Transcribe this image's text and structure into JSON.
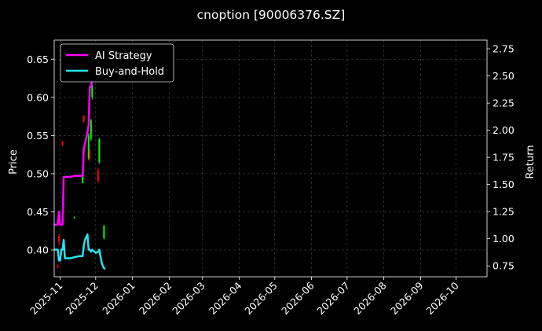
{
  "chart_data": {
    "type": "line",
    "title": "cnoption [90006376.SZ]",
    "ylabel": "Price",
    "y2label": "Return",
    "xlim": [
      "2025-10-27",
      "2026-10-27"
    ],
    "ylim": [
      0.365,
      0.675
    ],
    "y2lim": [
      0.65,
      2.83
    ],
    "x_ticks": [
      "2025-11",
      "2025-12",
      "2026-01",
      "2026-02",
      "2026-03",
      "2026-04",
      "2026-05",
      "2026-06",
      "2026-07",
      "2026-08",
      "2026-09",
      "2026-10"
    ],
    "y_ticks": [
      "0.40",
      "0.45",
      "0.50",
      "0.55",
      "0.60",
      "0.65"
    ],
    "y2_ticks": [
      "0.75",
      "1.00",
      "1.25",
      "1.50",
      "1.75",
      "2.00",
      "2.25",
      "2.50",
      "2.75"
    ],
    "grid": true,
    "legend_position": "top-left",
    "colors": {
      "background": "#000000",
      "up": "#00ff00",
      "down": "#ff0000",
      "grid": "#555555"
    },
    "candles": [
      {
        "date": "2025-10-30",
        "open": 0.38,
        "close": 0.377,
        "high": 0.381,
        "low": 0.376
      },
      {
        "date": "2025-10-31",
        "open": 0.418,
        "close": 0.41,
        "high": 0.421,
        "low": 0.406
      },
      {
        "date": "2025-11-03",
        "open": 0.542,
        "close": 0.538,
        "high": 0.543,
        "low": 0.536
      },
      {
        "date": "2025-11-13",
        "open": 0.442,
        "close": 0.443,
        "high": 0.444,
        "low": 0.441
      },
      {
        "date": "2025-11-20",
        "open": 0.488,
        "close": 0.5,
        "high": 0.502,
        "low": 0.487
      },
      {
        "date": "2025-11-21",
        "open": 0.576,
        "close": 0.568,
        "high": 0.577,
        "low": 0.566
      },
      {
        "date": "2025-11-25",
        "open": 0.52,
        "close": 0.55,
        "high": 0.553,
        "low": 0.518
      },
      {
        "date": "2025-11-26",
        "open": 0.53,
        "close": 0.52,
        "high": 0.532,
        "low": 0.516
      },
      {
        "date": "2025-11-27",
        "open": 0.545,
        "close": 0.57,
        "high": 0.572,
        "low": 0.543
      },
      {
        "date": "2025-11-28",
        "open": 0.6,
        "close": 0.615,
        "high": 0.618,
        "low": 0.597
      },
      {
        "date": "2025-12-03",
        "open": 0.505,
        "close": 0.49,
        "high": 0.507,
        "low": 0.488
      },
      {
        "date": "2025-12-04",
        "open": 0.515,
        "close": 0.545,
        "high": 0.547,
        "low": 0.513
      },
      {
        "date": "2025-12-08",
        "open": 0.415,
        "close": 0.432,
        "high": 0.433,
        "low": 0.414
      }
    ],
    "series": [
      {
        "name": "AI Strategy",
        "color": "#ff00ff",
        "axis": "right",
        "x": [
          "2025-10-27",
          "2025-10-30",
          "2025-10-31",
          "2025-11-01",
          "2025-11-03",
          "2025-11-04",
          "2025-11-10",
          "2025-11-13",
          "2025-11-17",
          "2025-11-20",
          "2025-11-21",
          "2025-11-24",
          "2025-11-25",
          "2025-11-26",
          "2025-11-27",
          "2025-11-28",
          "2025-11-30"
        ],
        "y": [
          1.13,
          1.13,
          1.25,
          1.13,
          1.13,
          1.57,
          1.57,
          1.58,
          1.58,
          1.58,
          1.83,
          1.98,
          2.05,
          2.4,
          2.4,
          2.48,
          2.55
        ]
      },
      {
        "name": "Buy-and-Hold",
        "color": "#22e5f2",
        "axis": "right",
        "x": [
          "2025-10-27",
          "2025-10-29",
          "2025-10-30",
          "2025-10-31",
          "2025-11-01",
          "2025-11-02",
          "2025-11-03",
          "2025-11-04",
          "2025-11-05",
          "2025-11-10",
          "2025-11-13",
          "2025-11-17",
          "2025-11-20",
          "2025-11-21",
          "2025-11-22",
          "2025-11-24",
          "2025-11-25",
          "2025-11-26",
          "2025-11-27",
          "2025-11-28",
          "2025-12-01",
          "2025-12-03",
          "2025-12-04",
          "2025-12-05",
          "2025-12-06",
          "2025-12-07",
          "2025-12-08",
          "2025-12-09"
        ],
        "y": [
          0.9,
          0.9,
          0.9,
          0.8,
          0.8,
          0.9,
          0.9,
          0.99,
          0.82,
          0.82,
          0.83,
          0.84,
          0.84,
          0.94,
          0.99,
          1.04,
          0.9,
          0.9,
          0.88,
          0.9,
          0.87,
          0.88,
          0.9,
          0.84,
          0.78,
          0.75,
          0.73,
          0.72
        ]
      }
    ]
  }
}
